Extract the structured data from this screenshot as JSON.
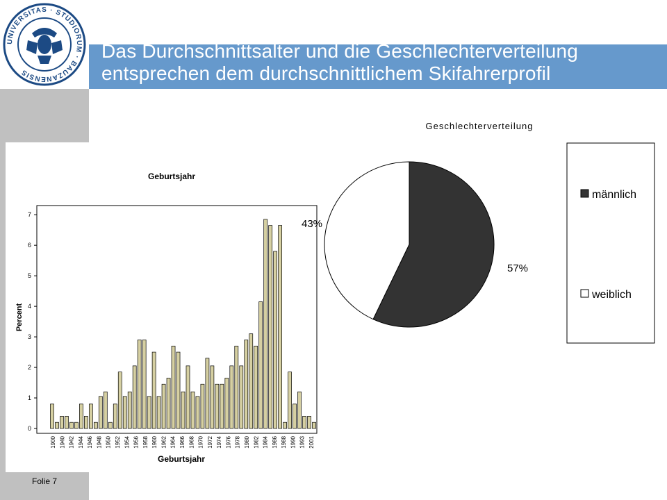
{
  "slide": {
    "title_line1": "Das Durchschnittsalter und die Geschlechterverteilung",
    "title_line2": "entsprechen dem durchschnittlichem Skifahrerprofil",
    "footer": "Folie 7",
    "logo_text": "UNIVERSITAS · STUDIORUM · BAUZANENSIS"
  },
  "colors": {
    "title_band": "#6699cc",
    "title_band_dark": "#1c4a84",
    "sidebar": "#c0c0c0",
    "bar_fill": "#d6d0a2",
    "pie_male": "#333333",
    "pie_female": "#ffffff"
  },
  "chart_data": [
    {
      "type": "bar",
      "title": "Geburtsjahr",
      "xlabel": "Geburtsjahr",
      "ylabel": "Percent",
      "ylim": [
        0,
        7.3
      ],
      "yticks": [
        0,
        1,
        2,
        3,
        4,
        5,
        6,
        7
      ],
      "tick_labels": [
        "1900",
        "1940",
        "1942",
        "1944",
        "1946",
        "1948",
        "1950",
        "1952",
        "1954",
        "1956",
        "1958",
        "1960",
        "1962",
        "1964",
        "1966",
        "1968",
        "1970",
        "1972",
        "1974",
        "1976",
        "1978",
        "1980",
        "1982",
        "1984",
        "1986",
        "1988",
        "1990",
        "1993",
        "2001"
      ],
      "values": [
        0.8,
        0.2,
        0.4,
        0.4,
        0.2,
        0.2,
        0.8,
        0.4,
        0.8,
        0.2,
        1.05,
        1.2,
        0.2,
        0.8,
        1.85,
        1.05,
        1.2,
        2.05,
        2.9,
        2.9,
        1.05,
        2.5,
        1.05,
        1.45,
        1.65,
        2.7,
        2.5,
        1.2,
        2.05,
        1.2,
        1.05,
        1.45,
        2.3,
        2.05,
        1.45,
        1.45,
        1.65,
        2.05,
        2.7,
        2.05,
        2.9,
        3.1,
        2.7,
        4.15,
        6.85,
        6.65,
        5.8,
        6.65,
        0.2,
        1.85,
        0.8,
        1.2,
        0.4,
        0.4,
        0.2
      ]
    },
    {
      "type": "pie",
      "title": "Geschlechterverteilung",
      "labels": [
        "männlich",
        "weiblich"
      ],
      "values": [
        57,
        43
      ],
      "value_labels": [
        "57%",
        "43%"
      ],
      "legend": "right"
    }
  ]
}
